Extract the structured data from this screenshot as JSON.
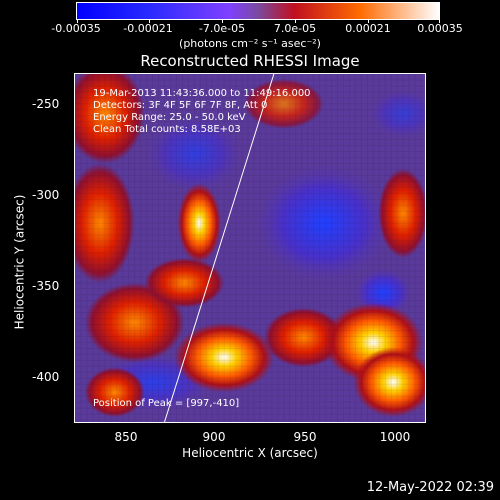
{
  "colorbar": {
    "labels": [
      "-0.00035",
      "-0.00021",
      "-7.0e-05",
      "7.0e-05",
      "0.00021",
      "0.00035"
    ],
    "units": "(photons cm⁻² s⁻¹ asec⁻²)"
  },
  "title": "Reconstructed RHESSI Image",
  "overlay": {
    "time": "19-Mar-2013 11:43:36.000 to 11:49:16.000",
    "detectors": "Detectors: 3F 4F 5F 6F 7F 8F, Att 0",
    "energy": "Energy Range: 25.0 - 50.0 keV",
    "clean": "Clean    Total counts: 8.58E+03",
    "peak": "Position of Peak = [997,-410]"
  },
  "axes": {
    "xlabel": "Heliocentric X (arcsec)",
    "ylabel": "Heliocentric Y (arcsec)",
    "xticks": [
      "850",
      "900",
      "950",
      "1000"
    ],
    "yticks": [
      "-250",
      "-300",
      "-350",
      "-400"
    ]
  },
  "footer": "12-May-2022 02:39"
}
